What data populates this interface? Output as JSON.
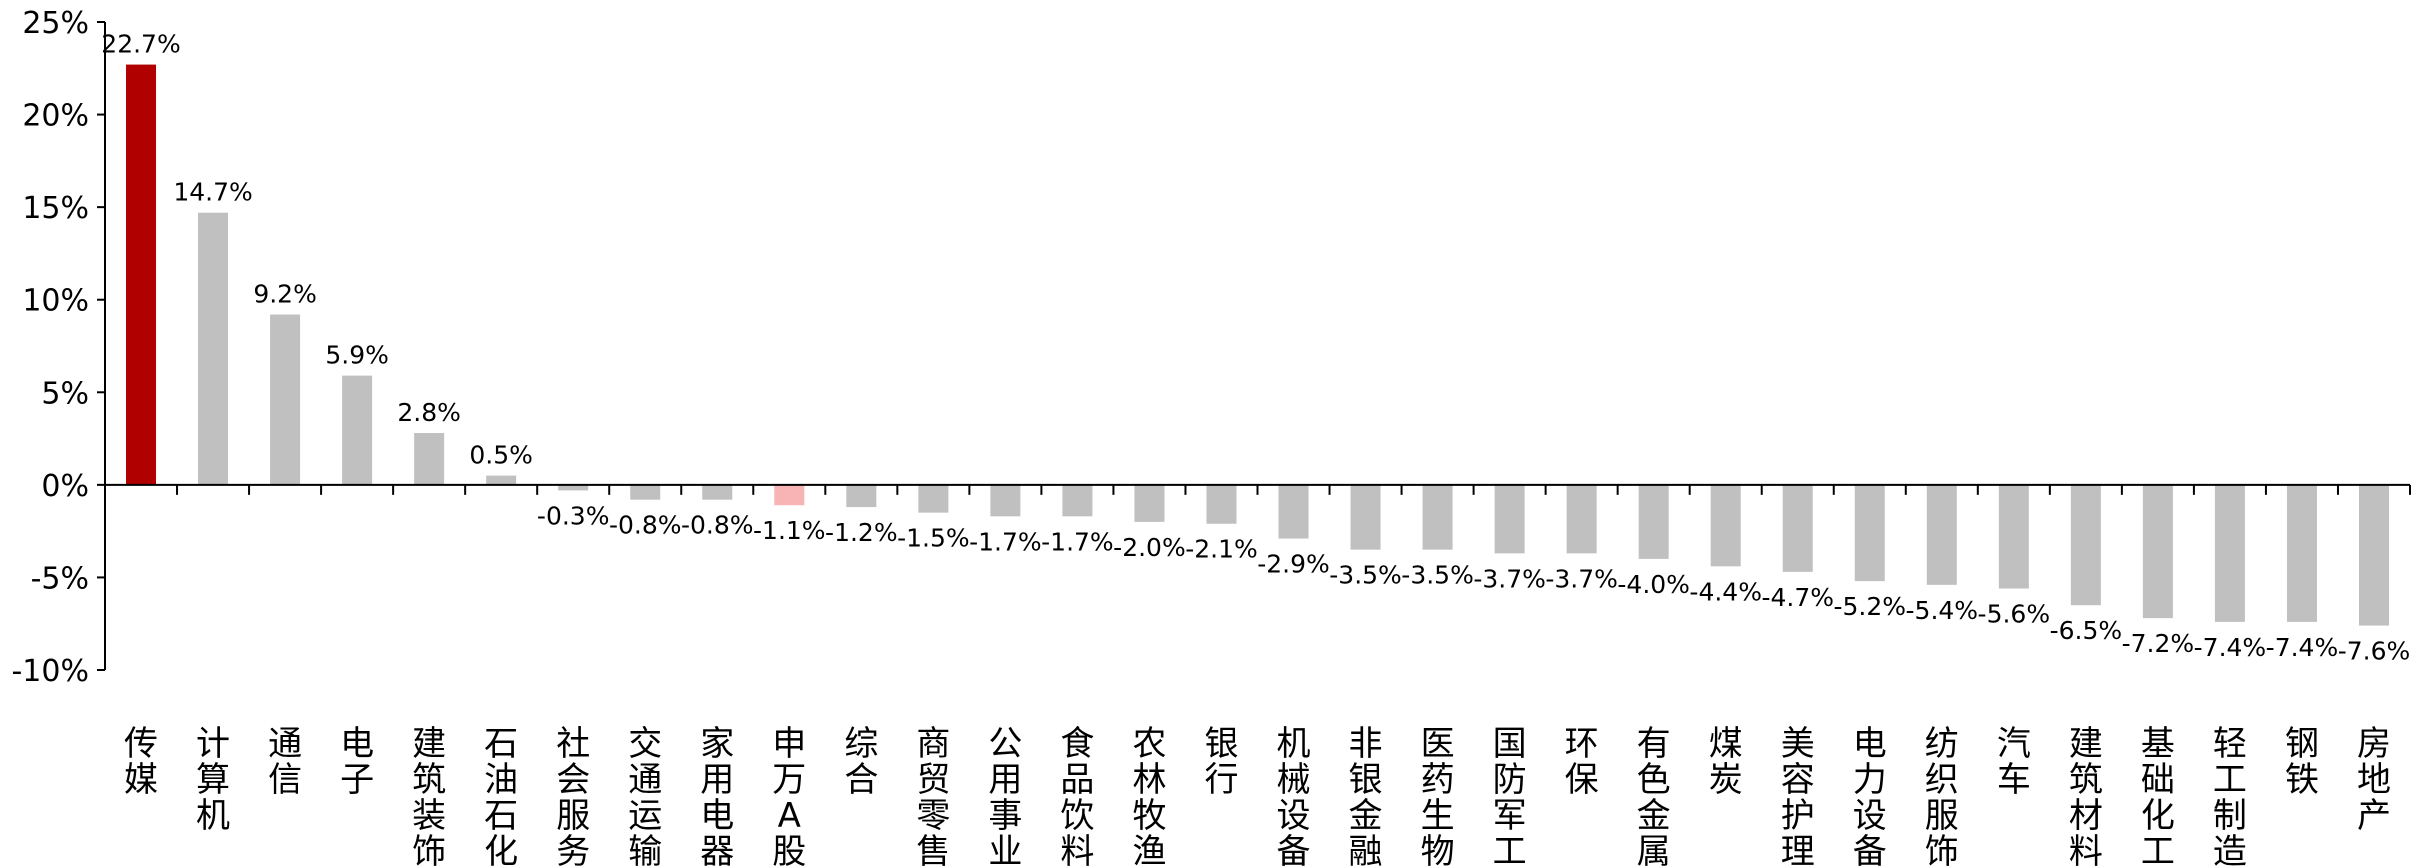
{
  "chart_data": {
    "type": "bar",
    "title": "",
    "xlabel": "",
    "ylabel": "",
    "ylim": [
      -10,
      25
    ],
    "yticks": [
      -10,
      -5,
      0,
      5,
      10,
      15,
      20,
      25
    ],
    "ytick_labels": [
      "-10%",
      "-5%",
      "0%",
      "5%",
      "10%",
      "15%",
      "20%",
      "25%"
    ],
    "grid": false,
    "legend": "none",
    "colors": {
      "highlight": "#b00000",
      "benchmark": "#f8b4b4",
      "default": "#c0c0c0"
    },
    "categories": [
      "传媒",
      "计算机",
      "通信",
      "电子",
      "建筑装饰",
      "石油石化",
      "社会服务",
      "交通运输",
      "家用电器",
      "申万A股",
      "综合",
      "商贸零售",
      "公用事业",
      "食品饮料",
      "农林牧渔",
      "银行",
      "机械设备",
      "非银金融",
      "医药生物",
      "国防军工",
      "环保",
      "有色金属",
      "煤炭",
      "美容护理",
      "电力设备",
      "纺织服饰",
      "汽车",
      "建筑材料",
      "基础化工",
      "轻工制造",
      "钢铁",
      "房地产"
    ],
    "values": [
      22.7,
      14.7,
      9.2,
      5.9,
      2.8,
      0.5,
      -0.3,
      -0.8,
      -0.8,
      -1.1,
      -1.2,
      -1.5,
      -1.7,
      -1.7,
      -2.0,
      -2.1,
      -2.9,
      -3.5,
      -3.5,
      -3.7,
      -3.7,
      -4.0,
      -4.4,
      -4.7,
      -5.2,
      -5.4,
      -5.6,
      -6.5,
      -7.2,
      -7.4,
      -7.4,
      -7.6
    ],
    "data_labels": [
      "22.7%",
      "14.7%",
      "9.2%",
      "5.9%",
      "2.8%",
      "0.5%",
      "-0.3%",
      "-0.8%",
      "-0.8%",
      "-1.1%",
      "-1.2%",
      "-1.5%",
      "-1.7%",
      "-1.7%",
      "-2.0%",
      "-2.1%",
      "-2.9%",
      "-3.5%",
      "-3.5%",
      "-3.7%",
      "-3.7%",
      "-4.0%",
      "-4.4%",
      "-4.7%",
      "-5.2%",
      "-5.4%",
      "-5.6%",
      "-6.5%",
      "-7.2%",
      "-7.4%",
      "-7.4%",
      "-7.6%"
    ],
    "bar_color_keys": [
      "highlight",
      "default",
      "default",
      "default",
      "default",
      "default",
      "default",
      "default",
      "default",
      "benchmark",
      "default",
      "default",
      "default",
      "default",
      "default",
      "default",
      "default",
      "default",
      "default",
      "default",
      "default",
      "default",
      "default",
      "default",
      "default",
      "default",
      "default",
      "default",
      "default",
      "default",
      "default",
      "default"
    ]
  }
}
